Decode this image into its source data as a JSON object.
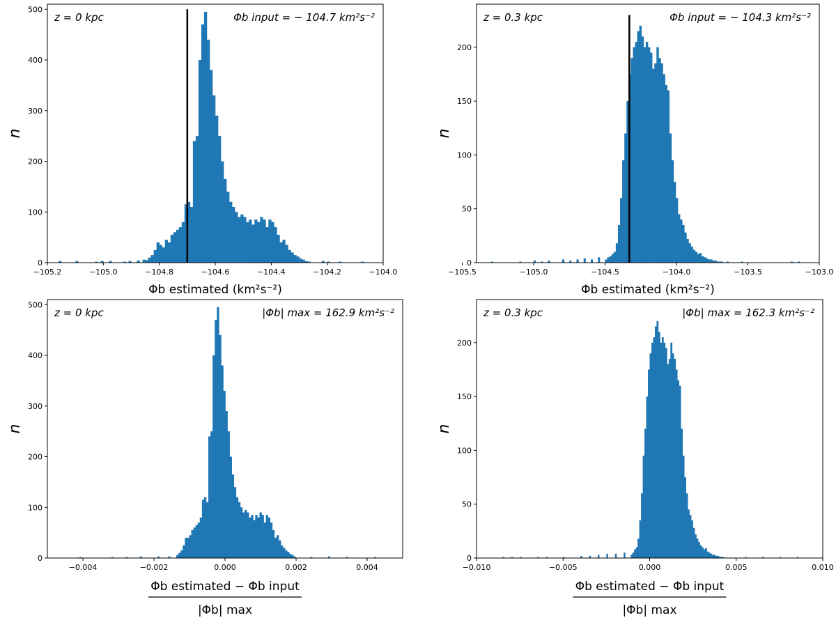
{
  "figure": {
    "colors": {
      "bar": "#1f77b4",
      "vline": "#000000",
      "axis": "#000000"
    }
  },
  "chart_data": [
    {
      "id": "a",
      "type": "bar",
      "title": "",
      "annotation_left": "z = 0 kpc",
      "annotation_right": "Φb input = − 104.7 km²s⁻²",
      "ylabel": "n",
      "xlabel": "Φb estimated (km²s⁻²)",
      "xlim": [
        -105.2,
        -104.0
      ],
      "ylim": [
        0,
        510
      ],
      "xticks": [
        -105.2,
        -105.0,
        -104.8,
        -104.6,
        -104.4,
        -104.2,
        -104.0
      ],
      "xtick_labels": [
        "−105.2",
        "−105.0",
        "−104.8",
        "−104.6",
        "−104.4",
        "−104.2",
        "−104.0"
      ],
      "yticks": [
        0,
        100,
        200,
        300,
        400,
        500
      ],
      "vline": -104.7,
      "vline_top": 500,
      "bins": {
        "start": -105.16,
        "width": 0.01,
        "counts": [
          3,
          0,
          0,
          0,
          0,
          0,
          3,
          0,
          0,
          0,
          0,
          0,
          0,
          2,
          0,
          3,
          0,
          0,
          3,
          0,
          0,
          0,
          0,
          2,
          0,
          3,
          0,
          0,
          4,
          0,
          6,
          5,
          10,
          15,
          25,
          40,
          35,
          30,
          45,
          40,
          55,
          60,
          65,
          70,
          80,
          115,
          120,
          110,
          240,
          250,
          400,
          470,
          495,
          440,
          380,
          330,
          290,
          250,
          200,
          165,
          140,
          120,
          110,
          100,
          90,
          95,
          90,
          80,
          85,
          75,
          85,
          80,
          90,
          85,
          70,
          85,
          80,
          70,
          55,
          40,
          45,
          35,
          25,
          20,
          15,
          12,
          8,
          6,
          3,
          2,
          0,
          0,
          0,
          0,
          3,
          0,
          2,
          0,
          0,
          0,
          2,
          0,
          0,
          0,
          0,
          0,
          0,
          0,
          2,
          0,
          0,
          0,
          0,
          0
        ]
      }
    },
    {
      "id": "b",
      "type": "bar",
      "title": "",
      "annotation_left": "z = 0.3 kpc",
      "annotation_right": "Φb input = − 104.3 km²s⁻²",
      "ylabel": "n",
      "xlabel": "Φb estimated (km²s⁻²)",
      "xlim": [
        -105.4,
        -103.0
      ],
      "ylim": [
        0,
        240
      ],
      "xticks": [
        -105.5,
        -105.0,
        -104.5,
        -104.0,
        -103.5,
        -103.0
      ],
      "xtick_labels": [
        "−105.5",
        "−105.0",
        "−104.5",
        "−104.0",
        "−103.5",
        "−103.0"
      ],
      "yticks": [
        0,
        50,
        100,
        150,
        200
      ],
      "vline": -104.33,
      "vline_top": 230,
      "bins": {
        "start": -104.5,
        "width": 0.015,
        "counts": [
          3,
          5,
          6,
          8,
          10,
          18,
          35,
          60,
          95,
          120,
          150,
          175,
          190,
          200,
          205,
          215,
          220,
          210,
          200,
          205,
          200,
          195,
          180,
          185,
          200,
          190,
          185,
          175,
          165,
          160,
          120,
          95,
          75,
          60,
          45,
          40,
          35,
          28,
          22,
          18,
          15,
          12,
          10,
          8,
          9,
          6,
          5,
          4,
          3,
          3,
          2,
          2,
          1,
          1,
          1
        ]
      },
      "scatter_bins": [
        {
          "x": -105.3,
          "n": 1
        },
        {
          "x": -105.1,
          "n": 1
        },
        {
          "x": -105.0,
          "n": 2
        },
        {
          "x": -104.95,
          "n": 1
        },
        {
          "x": -104.9,
          "n": 2
        },
        {
          "x": -104.8,
          "n": 3
        },
        {
          "x": -104.75,
          "n": 2
        },
        {
          "x": -104.7,
          "n": 3
        },
        {
          "x": -104.65,
          "n": 4
        },
        {
          "x": -104.6,
          "n": 3
        },
        {
          "x": -104.55,
          "n": 5
        },
        {
          "x": -103.65,
          "n": 1
        },
        {
          "x": -103.55,
          "n": 1
        },
        {
          "x": -103.2,
          "n": 1
        },
        {
          "x": -103.15,
          "n": 1
        }
      ]
    },
    {
      "id": "c",
      "type": "bar",
      "title": "",
      "annotation_left": "z = 0 kpc",
      "annotation_right": "|Φb| max = 162.9 km²s⁻²",
      "ylabel": "n",
      "xlabel_numerator": "Φb estimated − Φb input",
      "xlabel_denominator": "|Φb| max",
      "xlim": [
        -0.005,
        0.005
      ],
      "ylim": [
        0,
        510
      ],
      "xticks": [
        -0.004,
        -0.002,
        0.0,
        0.002,
        0.004
      ],
      "xtick_labels": [
        "−0.004",
        "−0.002",
        "0.000",
        "0.002",
        "0.004"
      ],
      "yticks": [
        0,
        100,
        200,
        300,
        400,
        500
      ],
      "bins": {
        "start": -0.00137,
        "width": 6e-05,
        "counts": [
          6,
          10,
          15,
          25,
          40,
          40,
          45,
          55,
          60,
          65,
          70,
          80,
          115,
          120,
          110,
          240,
          250,
          400,
          470,
          495,
          440,
          380,
          330,
          290,
          250,
          200,
          165,
          140,
          120,
          110,
          100,
          90,
          95,
          90,
          80,
          85,
          75,
          85,
          80,
          90,
          85,
          70,
          85,
          80,
          70,
          55,
          40,
          45,
          35,
          25,
          20,
          15,
          12,
          8,
          6,
          3
        ]
      },
      "scatter_bins": [
        {
          "x": -0.0041,
          "n": 2
        },
        {
          "x": -0.0032,
          "n": 2
        },
        {
          "x": -0.0028,
          "n": 2
        },
        {
          "x": -0.0024,
          "n": 3
        },
        {
          "x": -0.0019,
          "n": 3
        },
        {
          "x": -0.0016,
          "n": 3
        },
        {
          "x": 0.0024,
          "n": 2
        },
        {
          "x": 0.0029,
          "n": 3
        },
        {
          "x": 0.0034,
          "n": 2
        },
        {
          "x": 0.0042,
          "n": 2
        }
      ]
    },
    {
      "id": "d",
      "type": "bar",
      "title": "",
      "annotation_left": "z = 0.3 kpc",
      "annotation_right": "|Φb| max = 162.3 km²s⁻²",
      "ylabel": "n",
      "xlabel_numerator": "Φb estimated − Φb input",
      "xlabel_denominator": "|Φb| max",
      "xlim": [
        -0.01,
        0.01
      ],
      "ylim": [
        0,
        240
      ],
      "xticks": [
        -0.01,
        -0.005,
        0.0,
        0.005,
        0.01
      ],
      "xtick_labels": [
        "−0.010",
        "−0.005",
        "0.000",
        "0.005",
        "0.010"
      ],
      "yticks": [
        0,
        50,
        100,
        150,
        200
      ],
      "bins": {
        "start": -0.0011,
        "width": 0.0001,
        "counts": [
          3,
          5,
          8,
          10,
          18,
          35,
          60,
          95,
          120,
          150,
          175,
          190,
          200,
          205,
          215,
          220,
          210,
          200,
          205,
          200,
          195,
          180,
          185,
          200,
          190,
          185,
          175,
          165,
          160,
          120,
          95,
          75,
          60,
          45,
          40,
          35,
          28,
          22,
          18,
          15,
          12,
          10,
          8,
          9,
          6,
          5,
          4,
          3,
          3,
          2,
          2,
          1,
          1,
          1
        ]
      },
      "scatter_bins": [
        {
          "x": -0.0085,
          "n": 1
        },
        {
          "x": -0.008,
          "n": 1
        },
        {
          "x": -0.0075,
          "n": 1
        },
        {
          "x": -0.0065,
          "n": 1
        },
        {
          "x": -0.006,
          "n": 1
        },
        {
          "x": -0.005,
          "n": 1
        },
        {
          "x": -0.004,
          "n": 2
        },
        {
          "x": -0.0035,
          "n": 2
        },
        {
          "x": -0.003,
          "n": 3
        },
        {
          "x": -0.0025,
          "n": 4
        },
        {
          "x": -0.002,
          "n": 4
        },
        {
          "x": -0.0015,
          "n": 5
        },
        {
          "x": 0.0055,
          "n": 1
        },
        {
          "x": 0.0065,
          "n": 1
        },
        {
          "x": 0.0075,
          "n": 1
        },
        {
          "x": 0.0085,
          "n": 1
        }
      ]
    }
  ]
}
